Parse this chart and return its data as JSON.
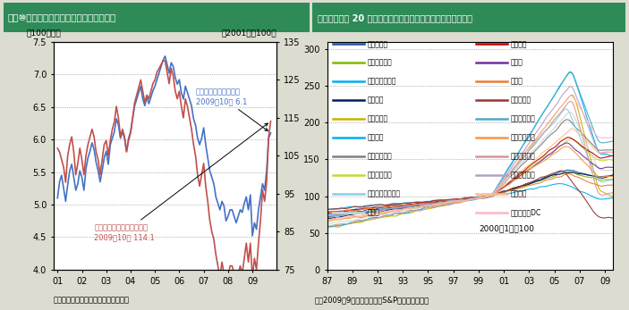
{
  "header_bg": "#2e8b57",
  "title1": "図表⑩：米国中古住宅販売と販売成約指数",
  "title2": "図表⑪：全米 20 都市の住宅価格指数（ケース・シラー指数）",
  "left_unit": "（100万戸）",
  "right_unit": "（2001年＝100）",
  "source1": "出所：ブルームバーグ、武者リサーチ",
  "source2": "注：2009年9月まで。出所：S&P、武者リサーチ",
  "note2": "2000年1月＝100",
  "blue_label_line1": "中古住宅販売（左軸）",
  "blue_label_line2": "2009年10月 6.1",
  "red_label_line1": "中古住宅成約指数（右軸）",
  "red_label_line2": "2009年10月 114.1",
  "blue_color": "#4472c4",
  "red_color": "#c0504d",
  "cities_col1": [
    "アトランタ",
    "シャルロッテ",
    "クリーブランド",
    "デンバー",
    "ラスベガス",
    "マイアミ",
    "ニューヨーク",
    "ポートランド",
    "サンフランシスコ",
    "タンパ"
  ],
  "cities_col2": [
    "ボストン",
    "シカゴ",
    "ダラス",
    "デトロイト",
    "ロサンゼルス",
    "ミネアポリス",
    "フェニックス",
    "サンディエゴ",
    "シアトル",
    "ワシントンDC"
  ],
  "city_colors": {
    "アトランタ": "#1f4e99",
    "シャルロッテ": "#7fba00",
    "クリーブランド": "#00b0f0",
    "デンバー": "#002060",
    "ラスベガス": "#c8b400",
    "マイアミ": "#00b0f0",
    "ニューヨーク": "#7f7f7f",
    "ポートランド": "#c6d930",
    "サンフランシスコ": "#87ceeb",
    "タンパ": "#d3d3d3",
    "ボストン": "#c00000",
    "シカゴ": "#7030a0",
    "ダラス": "#ed7d31",
    "デトロイト": "#963634",
    "ロサンゼルス": "#4bacc6",
    "ミネアポリス": "#f79646",
    "フェニックス": "#d99694",
    "サンディエゴ": "#b2a1c7",
    "シアトル": "#fabf8f",
    "ワシントンDC": "#ffb6c1"
  }
}
